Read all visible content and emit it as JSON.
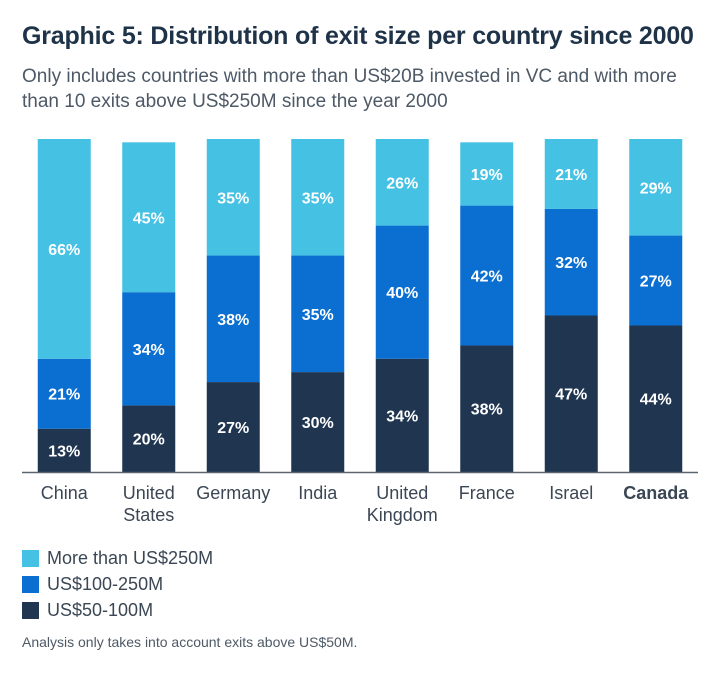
{
  "chart_data": {
    "type": "bar",
    "stacked": true,
    "percent_stacked": true,
    "title": "Graphic 5: Distribution of exit size per country since 2000",
    "subtitle": "Only includes countries with more than US$20B invested in VC and with more than 10 exits above US$250M since the year 2000",
    "categories": [
      [
        "China"
      ],
      [
        "United",
        "States"
      ],
      [
        "Germany"
      ],
      [
        "India"
      ],
      [
        "United",
        "Kingdom"
      ],
      [
        "France"
      ],
      [
        "Israel"
      ],
      [
        "Canada"
      ]
    ],
    "highlight_category": "Canada",
    "series": [
      {
        "name": "US$50-100M",
        "color": "#1f3550",
        "values": [
          13,
          20,
          27,
          30,
          34,
          38,
          47,
          44
        ]
      },
      {
        "name": "US$100-250M",
        "color": "#0a6fd1",
        "values": [
          21,
          34,
          38,
          35,
          40,
          42,
          32,
          27
        ]
      },
      {
        "name": "More than US$250M",
        "color": "#45c1e3",
        "values": [
          66,
          45,
          35,
          35,
          26,
          19,
          21,
          29
        ]
      }
    ],
    "legend": [
      {
        "label": "More than US$250M",
        "color": "#45c1e3"
      },
      {
        "label": "US$100-250M",
        "color": "#0a6fd1"
      },
      {
        "label": "US$50-100M",
        "color": "#1f3550"
      }
    ],
    "legend_position": "bottom-left",
    "label_suffix": "%",
    "xlabel": "",
    "ylabel": "",
    "ylim": [
      0,
      100
    ],
    "grid": false,
    "footnote": "Analysis only takes into account exits above US$50M."
  }
}
